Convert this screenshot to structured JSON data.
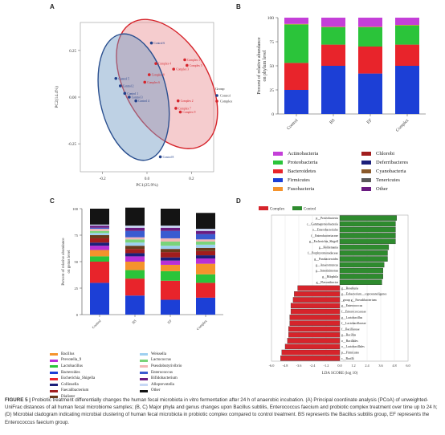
{
  "panels": {
    "a": "A",
    "b": "B",
    "c": "C",
    "d": "D"
  },
  "chart_data": [
    {
      "type": "scatter",
      "panel": "A",
      "xlabel": "PC1(25.9%)",
      "ylabel": "PC2(14.4%)",
      "xticks": [
        "-0.2",
        "0.0",
        "0.2"
      ],
      "yticks": [
        "0.25",
        "0.00",
        "-0.25"
      ],
      "legend_title": "Group",
      "series": [
        {
          "name": "Control",
          "color": "#1f3f8a",
          "points": [
            {
              "label": "Control 6",
              "x": 0.02,
              "y": 0.29
            },
            {
              "label": "Control 5",
              "x": -0.14,
              "y": 0.1
            },
            {
              "label": "Control 2",
              "x": -0.12,
              "y": 0.06
            },
            {
              "label": "Control 1",
              "x": -0.1,
              "y": 0.02
            },
            {
              "label": "Control 3",
              "x": -0.08,
              "y": 0.0
            },
            {
              "label": "Control 4",
              "x": -0.05,
              "y": -0.02
            },
            {
              "label": "Control 8",
              "x": 0.06,
              "y": -0.32
            }
          ]
        },
        {
          "name": "Complex",
          "color": "#d6242b",
          "points": [
            {
              "label": "Complex 4",
              "x": 0.04,
              "y": 0.18
            },
            {
              "label": "Complex 3",
              "x": 0.12,
              "y": 0.15
            },
            {
              "label": "Complex 1",
              "x": 0.17,
              "y": 0.2
            },
            {
              "label": "Complex 5",
              "x": 0.18,
              "y": 0.17
            },
            {
              "label": "Complex 8",
              "x": 0.01,
              "y": 0.12
            },
            {
              "label": "Complex 6",
              "x": -0.01,
              "y": 0.08
            },
            {
              "label": "Complex 2",
              "x": 0.14,
              "y": -0.02
            },
            {
              "label": "Complex 7",
              "x": 0.13,
              "y": -0.06
            },
            {
              "label": "Complex 9",
              "x": 0.15,
              "y": -0.08
            }
          ]
        }
      ]
    },
    {
      "type": "bar",
      "panel": "B",
      "stacked": true,
      "categories": [
        "Control",
        "BS",
        "EF",
        "Complex"
      ],
      "ylabel": "Percent of relative abundance on phylum level",
      "ylim": [
        0,
        100
      ],
      "yticks": [
        "100",
        "75",
        "50",
        "25",
        "0"
      ],
      "series": [
        {
          "name": "Firmicutes",
          "color": "#1c3fd6",
          "values": [
            25,
            50,
            42,
            50
          ]
        },
        {
          "name": "Bacteroidetes",
          "color": "#e8242b",
          "values": [
            28,
            22,
            28,
            22
          ]
        },
        {
          "name": "Proteobacteria",
          "color": "#2bc43a",
          "values": [
            40,
            18,
            20,
            20
          ]
        },
        {
          "name": "Fusobacteria",
          "color": "#f5932c",
          "values": [
            0.5,
            0.5,
            0.5,
            0.5
          ]
        },
        {
          "name": "Actinobacteria",
          "color": "#c43fd8",
          "values": [
            6.5,
            9.5,
            9.5,
            7.5
          ]
        }
      ],
      "legend": [
        {
          "name": "Actinobacteria",
          "color": "#c43fd8"
        },
        {
          "name": "Proteobacteria",
          "color": "#2bc43a"
        },
        {
          "name": "Bacteroidetes",
          "color": "#e8242b"
        },
        {
          "name": "Firmicutes",
          "color": "#1c3fd6"
        },
        {
          "name": "Fusobacteria",
          "color": "#f5932c"
        },
        {
          "name": "Chlorobi",
          "color": "#a11d1d"
        },
        {
          "name": "Deferribacteres",
          "color": "#1b1f7a"
        },
        {
          "name": "Cyanobacteria",
          "color": "#8a5a2b"
        },
        {
          "name": "Tenericutes",
          "color": "#5a5a5a"
        },
        {
          "name": "Other",
          "color": "#6a1b80"
        }
      ]
    },
    {
      "type": "bar",
      "panel": "C",
      "stacked": true,
      "categories": [
        "Control",
        "BS",
        "EF",
        "Complex"
      ],
      "ylabel": "Percent of relative abundance on genus level",
      "ylim": [
        0,
        100
      ],
      "yticks": [
        "100",
        "75",
        "50",
        "25",
        "0"
      ],
      "series": [
        {
          "name": "Bacteroides",
          "color": "#1c3fd6",
          "values": [
            30,
            18,
            14,
            16
          ]
        },
        {
          "name": "Escherichia_Shigella",
          "color": "#e8242b",
          "values": [
            20,
            16,
            18,
            14
          ]
        },
        {
          "name": "Lactobacillus",
          "color": "#2bc43a",
          "values": [
            5,
            8,
            9,
            8
          ]
        },
        {
          "name": "Bacillus",
          "color": "#f5932c",
          "values": [
            6,
            8,
            6,
            10
          ]
        },
        {
          "name": "Prevotella_9",
          "color": "#b92fd6",
          "values": [
            4,
            5,
            4,
            5
          ]
        },
        {
          "name": "Collinsella",
          "color": "#1b1f7a",
          "values": [
            3,
            3,
            3,
            3
          ]
        },
        {
          "name": "Faecalibacterium",
          "color": "#a11d1d",
          "values": [
            4,
            4,
            5,
            4
          ]
        },
        {
          "name": "Dialister",
          "color": "#6a3b1b",
          "values": [
            3,
            3,
            3,
            3
          ]
        },
        {
          "name": "Weissella",
          "color": "#9ed0f0",
          "values": [
            2,
            3,
            3,
            3
          ]
        },
        {
          "name": "Lactococcus",
          "color": "#7ad37a",
          "values": [
            2,
            3,
            4,
            3
          ]
        },
        {
          "name": "Pseudobutyrivibrio",
          "color": "#f2b6b6",
          "values": [
            2,
            2,
            3,
            2
          ]
        },
        {
          "name": "Enterococcus",
          "color": "#3a5bd0",
          "values": [
            1,
            6,
            7,
            5
          ]
        },
        {
          "name": "Bifidobacterium",
          "color": "#6a1b80",
          "values": [
            2,
            3,
            3,
            3
          ]
        },
        {
          "name": "Alloprevotella",
          "color": "#c7d8f5",
          "values": [
            1,
            2,
            2,
            2
          ]
        },
        {
          "name": "Other",
          "color": "#141414",
          "values": [
            15,
            17,
            16,
            15
          ]
        }
      ],
      "legend": [
        {
          "name": "Bacillus",
          "color": "#f5932c"
        },
        {
          "name": "Prevotella_9",
          "color": "#b92fd6"
        },
        {
          "name": "Lactobacillus",
          "color": "#2bc43a"
        },
        {
          "name": "Bacteroides",
          "color": "#1c3fd6"
        },
        {
          "name": "Escherichia_Shigella",
          "color": "#e8242b"
        },
        {
          "name": "Collinsella",
          "color": "#1b1f7a"
        },
        {
          "name": "Faecalibacterium",
          "color": "#a11d1d"
        },
        {
          "name": "Dialister",
          "color": "#6a3b1b"
        },
        {
          "name": "Weissella",
          "color": "#9ed0f0"
        },
        {
          "name": "Lactococcus",
          "color": "#7ad37a"
        },
        {
          "name": "Pseudobutyrivibrio",
          "color": "#f2b6b6"
        },
        {
          "name": "Enterococcus",
          "color": "#3a5bd0"
        },
        {
          "name": "Bifidobacterium",
          "color": "#6a1b80"
        },
        {
          "name": "Alloprevotella",
          "color": "#c7d8f5"
        },
        {
          "name": "Other",
          "color": "#141414"
        }
      ]
    },
    {
      "type": "bar",
      "panel": "D",
      "orientation": "horizontal",
      "xlabel": "LDA SCORE (log 10)",
      "xlim": [
        -6,
        6
      ],
      "xticks": [
        "-6.0",
        "-4.8",
        "-3.6",
        "-2.4",
        "-1.2",
        "0.0",
        "1.2",
        "2.4",
        "3.6",
        "4.8",
        "6.0"
      ],
      "legend": [
        {
          "name": "Complex",
          "color": "#d6242b"
        },
        {
          "name": "Control",
          "color": "#2e8b2e"
        }
      ],
      "bars": [
        {
          "label": "p__Proteobacteria",
          "value": 5.0,
          "group": "Control"
        },
        {
          "label": "c__Gammaproteobacteria",
          "value": 4.9,
          "group": "Control"
        },
        {
          "label": "o__Enterobacteriales",
          "value": 4.9,
          "group": "Control"
        },
        {
          "label": "f__Enterobacteriaceae",
          "value": 4.9,
          "group": "Control"
        },
        {
          "label": "g__Escherichia_Shigell",
          "value": 4.9,
          "group": "Control"
        },
        {
          "label": "g__Holdemania",
          "value": 4.3,
          "group": "Control"
        },
        {
          "label": "f__Porphyromonadaceae",
          "value": 4.2,
          "group": "Control"
        },
        {
          "label": "g__Parabacteroides",
          "value": 4.2,
          "group": "Control"
        },
        {
          "label": "g__Anaerotruncus",
          "value": 3.9,
          "group": "Control"
        },
        {
          "label": "g__Intestinimonas",
          "value": 3.8,
          "group": "Control"
        },
        {
          "label": "g__Bilophila",
          "value": 3.8,
          "group": "Control"
        },
        {
          "label": "g__Flavonifractor",
          "value": 3.7,
          "group": "Control"
        },
        {
          "label": "g__Roseburia",
          "value": -3.7,
          "group": "Complex"
        },
        {
          "label": "g__Eubacterium__coprostanoligenes",
          "value": -4.0,
          "group": "Complex"
        },
        {
          "label": "_group g__Faecalibacterium",
          "value": -4.1,
          "group": "Complex"
        },
        {
          "label": "g__Enterococcus",
          "value": -4.3,
          "group": "Complex"
        },
        {
          "label": "f__Enterococcaceae",
          "value": -4.3,
          "group": "Complex"
        },
        {
          "label": "g__Lactobacillus",
          "value": -4.4,
          "group": "Complex"
        },
        {
          "label": "f__Lactobacillaceae",
          "value": -4.4,
          "group": "Complex"
        },
        {
          "label": "f__Bacillaceae",
          "value": -4.5,
          "group": "Complex"
        },
        {
          "label": "g__Bacillus",
          "value": -4.5,
          "group": "Complex"
        },
        {
          "label": "o__Bacillales",
          "value": -4.6,
          "group": "Complex"
        },
        {
          "label": "o__Lactobacillales",
          "value": -4.8,
          "group": "Complex"
        },
        {
          "label": "p__Firmicutes",
          "value": -5.1,
          "group": "Complex"
        },
        {
          "label": "c__Bacilli",
          "value": -5.2,
          "group": "Complex"
        }
      ]
    }
  ],
  "caption": {
    "fig": "FIGURE 5 |",
    "text": " Probiotic treatment differentially changes the human fecal microbiota in vitro fermentation after 24 h of anaerobic incubation. (A) Principal coordinate analysis (PCoA) of unweighted-UniFrac distances of all human fecal microbiome samples; (B, C) Major phyla and genus changes upon Bacillus subtilis, Enterococcus faecium and probiotic complex treatment over time up to 24 h; (D) Microbial cladogram indicating microbial clustering of human fecal microbiota in probiotic complex compared to control treatment. BS represents the Bacillus subtilis group, EF represents the Enterococcus faecium group."
  }
}
